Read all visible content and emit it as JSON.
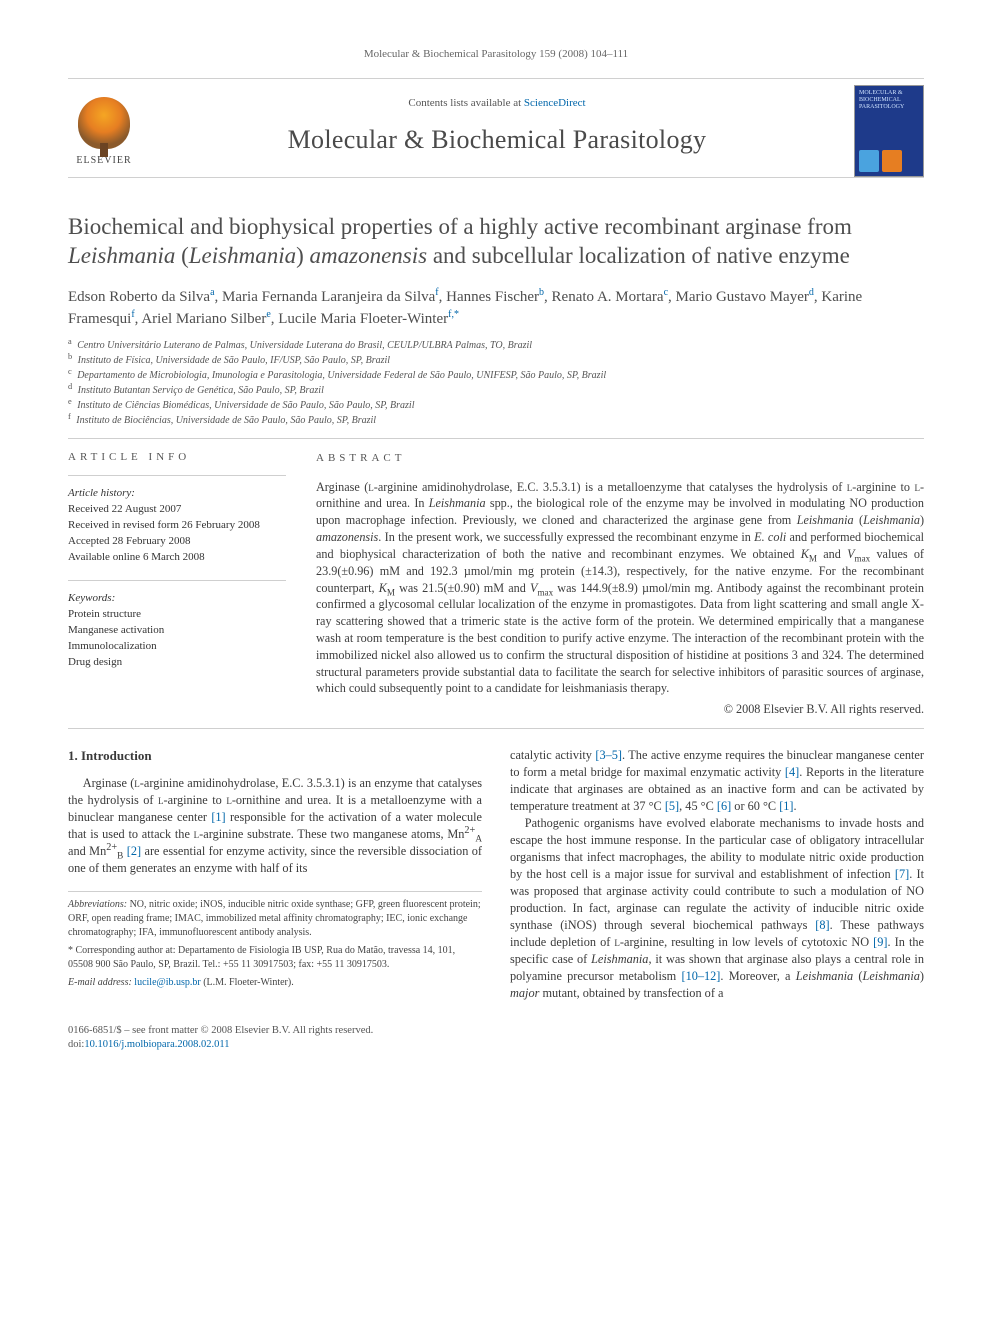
{
  "running_head": "Molecular & Biochemical Parasitology 159 (2008) 104–111",
  "masthead": {
    "contents_prefix": "Contents lists available at ",
    "contents_link": "ScienceDirect",
    "journal": "Molecular & Biochemical Parasitology",
    "elsevier": "ELSEVIER",
    "cover_title": "MOLECULAR & BIOCHEMICAL PARASITOLOGY"
  },
  "title_parts": {
    "p1": "Biochemical and biophysical properties of a highly active recombinant arginase from ",
    "ital1": "Leishmania",
    "p2": " (",
    "ital2": "Leishmania",
    "p3": ") ",
    "ital3": "amazonensis",
    "p4": " and subcellular localization of native enzyme"
  },
  "authors_html": "Edson Roberto da Silva<sup>a</sup>, Maria Fernanda Laranjeira da Silva<sup>f</sup>, Hannes Fischer<sup>b</sup>, Renato A. Mortara<sup>c</sup>, Mario Gustavo Mayer<sup>d</sup>, Karine Framesqui<sup>f</sup>, Ariel Mariano Silber<sup>e</sup>, Lucile Maria Floeter-Winter<sup>f,*</sup>",
  "affiliations": [
    {
      "s": "a",
      "t": "Centro Universitário Luterano de Palmas, Universidade Luterana do Brasil, CEULP/ULBRA Palmas, TO, Brazil"
    },
    {
      "s": "b",
      "t": "Instituto de Física, Universidade de São Paulo, IF/USP, São Paulo, SP, Brazil"
    },
    {
      "s": "c",
      "t": "Departamento de Microbiologia, Imunologia e Parasitologia, Universidade Federal de São Paulo, UNIFESP, São Paulo, SP, Brazil"
    },
    {
      "s": "d",
      "t": "Instituto Butantan Serviço de Genética, São Paulo, SP, Brazil"
    },
    {
      "s": "e",
      "t": "Instituto de Ciências Biomédicas, Universidade de São Paulo, São Paulo, SP, Brazil"
    },
    {
      "s": "f",
      "t": "Instituto de Biociências, Universidade de São Paulo, São Paulo, SP, Brazil"
    }
  ],
  "info": {
    "heading": "article info",
    "history_label": "Article history:",
    "history": [
      "Received 22 August 2007",
      "Received in revised form 26 February 2008",
      "Accepted 28 February 2008",
      "Available online 6 March 2008"
    ],
    "keywords_label": "Keywords:",
    "keywords": [
      "Protein structure",
      "Manganese activation",
      "Immunolocalization",
      "Drug design"
    ]
  },
  "abstract": {
    "heading": "abstract",
    "text": "Arginase (ʟ-arginine amidinohydrolase, E.C. 3.5.3.1) is a metalloenzyme that catalyses the hydrolysis of ʟ-arginine to ʟ-ornithine and urea. In Leishmania spp., the biological role of the enzyme may be involved in modulating NO production upon macrophage infection. Previously, we cloned and characterized the arginase gene from Leishmania (Leishmania) amazonensis. In the present work, we successfully expressed the recombinant enzyme in E. coli and performed biochemical and biophysical characterization of both the native and recombinant enzymes. We obtained KM and Vmax values of 23.9(±0.96) mM and 192.3 µmol/min mg protein (±14.3), respectively, for the native enzyme. For the recombinant counterpart, KM was 21.5(±0.90) mM and Vmax was 144.9(±8.9) µmol/min mg. Antibody against the recombinant protein confirmed a glycosomal cellular localization of the enzyme in promastigotes. Data from light scattering and small angle X-ray scattering showed that a trimeric state is the active form of the protein. We determined empirically that a manganese wash at room temperature is the best condition to purify active enzyme. The interaction of the recombinant protein with the immobilized nickel also allowed us to confirm the structural disposition of histidine at positions 3 and 324. The determined structural parameters provide substantial data to facilitate the search for selective inhibitors of parasitic sources of arginase, which could subsequently point to a candidate for leishmaniasis therapy.",
    "copyright": "© 2008 Elsevier B.V. All rights reserved."
  },
  "section1_heading": "1.  Introduction",
  "para1": "Arginase (ʟ-arginine amidinohydrolase, E.C. 3.5.3.1) is an enzyme that catalyses the hydrolysis of ʟ-arginine to ʟ-ornithine and urea. It is a metalloenzyme with a binuclear manganese center [1] responsible for the activation of a water molecule that is used to attack the ʟ-arginine substrate. These two manganese atoms, Mn²⁺A and Mn²⁺B [2] are essential for enzyme activity, since the reversible dissociation of one of them generates an enzyme with half of its",
  "para2": "catalytic activity [3–5]. The active enzyme requires the binuclear manganese center to form a metal bridge for maximal enzymatic activity [4]. Reports in the literature indicate that arginases are obtained as an inactive form and can be activated by temperature treatment at 37 °C [5], 45 °C [6] or 60 °C [1].",
  "para3": "Pathogenic organisms have evolved elaborate mechanisms to invade hosts and escape the host immune response. In the particular case of obligatory intracellular organisms that infect macrophages, the ability to modulate nitric oxide production by the host cell is a major issue for survival and establishment of infection [7]. It was proposed that arginase activity could contribute to such a modulation of NO production. In fact, arginase can regulate the activity of inducible nitric oxide synthase (iNOS) through several biochemical pathways [8]. These pathways include depletion of ʟ-arginine, resulting in low levels of cytotoxic NO [9]. In the specific case of Leishmania, it was shown that arginase also plays a central role in polyamine precursor metabolism [10–12]. Moreover, a Leishmania (Leishmania) major mutant, obtained by transfection of a",
  "footnotes": {
    "abbr_label": "Abbreviations:",
    "abbr_text": " NO, nitric oxide; iNOS, inducible nitric oxide synthase; GFP, green fluorescent protein; ORF, open reading frame; IMAC, immobilized metal affinity chromatography; IEC, ionic exchange chromatography; IFA, immunofluorescent antibody analysis.",
    "corr_label": "* Corresponding author at:",
    "corr_text": " Departamento de Fisiologia IB USP, Rua do Matão, travessa 14, 101, 05508 900 São Paulo, SP, Brazil. Tel.: +55 11 30917503; fax: +55 11 30917503.",
    "email_label": "E-mail address:",
    "email": "lucile@ib.usp.br",
    "email_suffix": " (L.M. Floeter-Winter)."
  },
  "footer": {
    "line1": "0166-6851/$ – see front matter © 2008 Elsevier B.V. All rights reserved.",
    "doi_prefix": "doi:",
    "doi": "10.1016/j.molbiopara.2008.02.011"
  },
  "ref_links": {
    "r1": "[1]",
    "r2": "[2]",
    "r35": "[3–5]",
    "r4": "[4]",
    "r5": "[5]",
    "r6": "[6]",
    "r7": "[7]",
    "r8": "[8]",
    "r9": "[9]",
    "r1012": "[10–12]"
  }
}
